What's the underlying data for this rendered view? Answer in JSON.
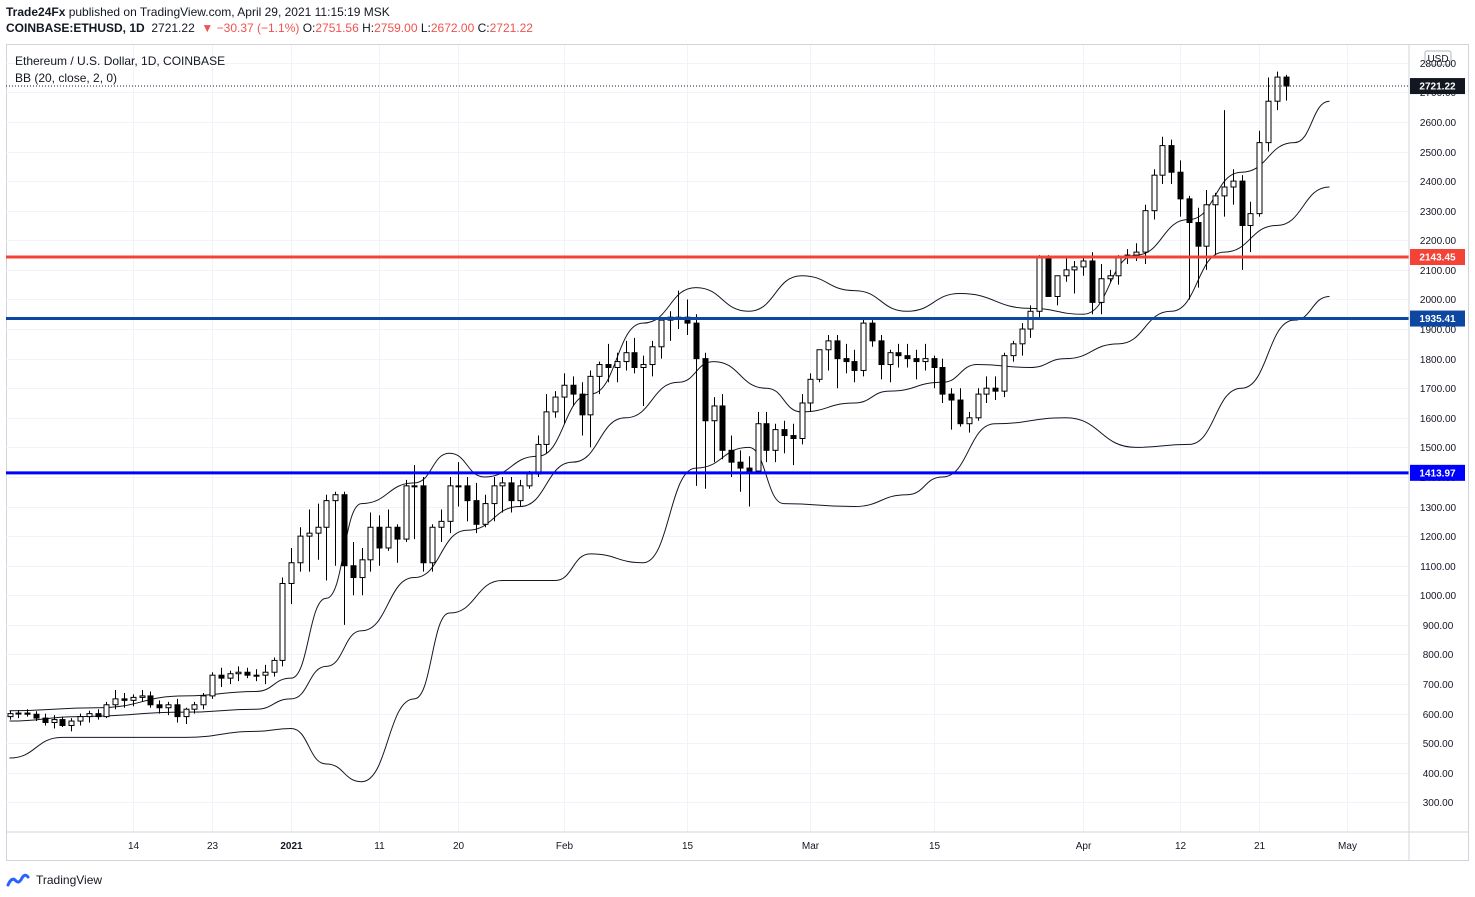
{
  "header": {
    "author": "Trade24Fx",
    "published": " published on TradingView.com, April 29, 2021 11:15:19 MSK",
    "symbol": "COINBASE:ETHUSD, 1D",
    "last": "2721.22",
    "change": "▼ −30.37 (−1.1%)",
    "o_label": "O:",
    "o_value": "2751.56",
    "h_label": "H:",
    "h_value": "2759.00",
    "l_label": "L:",
    "l_value": "2672.00",
    "c_label": "C:",
    "c_value": "2721.22"
  },
  "legend": {
    "pair": "Ethereum / U.S. Dollar, 1D, COINBASE",
    "indicator": "BB (20, close, 2, 0)"
  },
  "footer": {
    "brand": "TradingView",
    "logo_icon": "tradingview-logo-icon"
  },
  "colors": {
    "red_line": "#f44336",
    "blue_line_upper": "#0d47a1",
    "blue_line_lower": "#0000ff",
    "last_price_tag": "#131722",
    "grid": "#f0f3fa"
  },
  "chart_data": {
    "type": "candlestick",
    "currency": "USD",
    "y_ticks": [
      300,
      400,
      500,
      600,
      700,
      800,
      900,
      1000,
      1100,
      1200,
      1300,
      1400,
      1500,
      1600,
      1700,
      1800,
      1900,
      2000,
      2100,
      2200,
      2300,
      2400,
      2500,
      2600,
      2700,
      2800
    ],
    "ylim": [
      200,
      2860
    ],
    "x_ticks": [
      {
        "label": "14",
        "i": 14
      },
      {
        "label": "23",
        "i": 23
      },
      {
        "label": "2021",
        "i": 32
      },
      {
        "label": "11",
        "i": 42
      },
      {
        "label": "20",
        "i": 51
      },
      {
        "label": "Feb",
        "i": 63
      },
      {
        "label": "15",
        "i": 77
      },
      {
        "label": "Mar",
        "i": 91
      },
      {
        "label": "15",
        "i": 105
      },
      {
        "label": "Apr",
        "i": 122
      },
      {
        "label": "12",
        "i": 133
      },
      {
        "label": "21",
        "i": 142
      },
      {
        "label": "May",
        "i": 152
      }
    ],
    "horizontal_levels": [
      {
        "value": 2143.45,
        "label": "2143.45",
        "color": "#f44336"
      },
      {
        "value": 1935.41,
        "label": "1935.41",
        "color": "#0d47a1"
      },
      {
        "value": 1413.97,
        "label": "1413.97",
        "color": "#0000ff"
      }
    ],
    "last_price": {
      "value": 2721.22,
      "label": "2721.22"
    },
    "ohlc": [
      [
        590,
        610,
        580,
        600
      ],
      [
        600,
        612,
        585,
        602
      ],
      [
        602,
        615,
        590,
        598
      ],
      [
        598,
        608,
        575,
        585
      ],
      [
        585,
        600,
        560,
        570
      ],
      [
        570,
        595,
        550,
        580
      ],
      [
        580,
        590,
        555,
        560
      ],
      [
        560,
        585,
        540,
        575
      ],
      [
        575,
        600,
        560,
        590
      ],
      [
        590,
        610,
        570,
        600
      ],
      [
        600,
        615,
        580,
        590
      ],
      [
        590,
        640,
        585,
        630
      ],
      [
        630,
        680,
        615,
        650
      ],
      [
        650,
        670,
        620,
        645
      ],
      [
        645,
        665,
        625,
        655
      ],
      [
        655,
        680,
        640,
        660
      ],
      [
        660,
        675,
        620,
        630
      ],
      [
        630,
        645,
        600,
        620
      ],
      [
        620,
        640,
        595,
        630
      ],
      [
        630,
        650,
        570,
        590
      ],
      [
        590,
        620,
        565,
        615
      ],
      [
        615,
        640,
        600,
        630
      ],
      [
        630,
        670,
        615,
        660
      ],
      [
        660,
        740,
        650,
        730
      ],
      [
        730,
        755,
        690,
        720
      ],
      [
        720,
        745,
        700,
        735
      ],
      [
        735,
        760,
        710,
        740
      ],
      [
        740,
        755,
        720,
        730
      ],
      [
        730,
        750,
        710,
        730
      ],
      [
        730,
        765,
        700,
        740
      ],
      [
        740,
        790,
        725,
        780
      ],
      [
        780,
        1060,
        760,
        1040
      ],
      [
        1040,
        1160,
        970,
        1110
      ],
      [
        1110,
        1230,
        1080,
        1200
      ],
      [
        1200,
        1290,
        1080,
        1210
      ],
      [
        1210,
        1310,
        1120,
        1230
      ],
      [
        1230,
        1340,
        1050,
        1320
      ],
      [
        1320,
        1350,
        1100,
        1340
      ],
      [
        1340,
        1350,
        900,
        1100
      ],
      [
        1100,
        1180,
        1000,
        1060
      ],
      [
        1060,
        1160,
        1000,
        1120
      ],
      [
        1120,
        1280,
        1080,
        1230
      ],
      [
        1230,
        1270,
        1100,
        1160
      ],
      [
        1160,
        1290,
        1150,
        1230
      ],
      [
        1230,
        1240,
        1110,
        1190
      ],
      [
        1190,
        1390,
        1180,
        1370
      ],
      [
        1370,
        1440,
        1190,
        1370
      ],
      [
        1370,
        1400,
        1080,
        1110
      ],
      [
        1110,
        1240,
        1080,
        1230
      ],
      [
        1230,
        1290,
        1180,
        1250
      ],
      [
        1250,
        1400,
        1210,
        1370
      ],
      [
        1370,
        1450,
        1300,
        1370
      ],
      [
        1370,
        1400,
        1250,
        1320
      ],
      [
        1320,
        1380,
        1210,
        1240
      ],
      [
        1240,
        1340,
        1230,
        1310
      ],
      [
        1310,
        1400,
        1250,
        1370
      ],
      [
        1370,
        1400,
        1280,
        1380
      ],
      [
        1380,
        1400,
        1280,
        1320
      ],
      [
        1320,
        1390,
        1300,
        1370
      ],
      [
        1370,
        1420,
        1360,
        1410
      ],
      [
        1410,
        1540,
        1400,
        1510
      ],
      [
        1510,
        1680,
        1480,
        1620
      ],
      [
        1620,
        1690,
        1600,
        1670
      ],
      [
        1670,
        1750,
        1580,
        1710
      ],
      [
        1710,
        1740,
        1640,
        1680
      ],
      [
        1680,
        1720,
        1540,
        1610
      ],
      [
        1610,
        1760,
        1500,
        1740
      ],
      [
        1740,
        1790,
        1680,
        1780
      ],
      [
        1780,
        1850,
        1720,
        1770
      ],
      [
        1770,
        1820,
        1720,
        1790
      ],
      [
        1790,
        1860,
        1760,
        1820
      ],
      [
        1820,
        1870,
        1750,
        1770
      ],
      [
        1770,
        1810,
        1640,
        1780
      ],
      [
        1780,
        1860,
        1740,
        1840
      ],
      [
        1840,
        1930,
        1800,
        1930
      ],
      [
        1930,
        1960,
        1860,
        1940
      ],
      [
        1940,
        2030,
        1900,
        1940
      ],
      [
        1940,
        2000,
        1880,
        1920
      ],
      [
        1920,
        1950,
        1370,
        1800
      ],
      [
        1800,
        1820,
        1360,
        1590
      ],
      [
        1590,
        1670,
        1450,
        1640
      ],
      [
        1640,
        1680,
        1460,
        1490
      ],
      [
        1490,
        1540,
        1400,
        1450
      ],
      [
        1450,
        1490,
        1350,
        1430
      ],
      [
        1430,
        1470,
        1300,
        1420
      ],
      [
        1420,
        1620,
        1410,
        1580
      ],
      [
        1580,
        1620,
        1450,
        1490
      ],
      [
        1490,
        1580,
        1450,
        1560
      ],
      [
        1560,
        1590,
        1480,
        1540
      ],
      [
        1540,
        1580,
        1440,
        1530
      ],
      [
        1530,
        1680,
        1510,
        1650
      ],
      [
        1650,
        1750,
        1620,
        1730
      ],
      [
        1730,
        1830,
        1720,
        1830
      ],
      [
        1830,
        1880,
        1760,
        1860
      ],
      [
        1860,
        1880,
        1700,
        1800
      ],
      [
        1800,
        1850,
        1750,
        1790
      ],
      [
        1790,
        1830,
        1720,
        1760
      ],
      [
        1760,
        1940,
        1740,
        1920
      ],
      [
        1920,
        1930,
        1840,
        1860
      ],
      [
        1860,
        1880,
        1730,
        1780
      ],
      [
        1780,
        1830,
        1720,
        1820
      ],
      [
        1820,
        1850,
        1770,
        1810
      ],
      [
        1810,
        1850,
        1770,
        1800
      ],
      [
        1800,
        1830,
        1730,
        1790
      ],
      [
        1790,
        1850,
        1760,
        1800
      ],
      [
        1800,
        1810,
        1700,
        1770
      ],
      [
        1770,
        1800,
        1650,
        1680
      ],
      [
        1680,
        1700,
        1560,
        1660
      ],
      [
        1660,
        1700,
        1570,
        1580
      ],
      [
        1580,
        1620,
        1550,
        1600
      ],
      [
        1600,
        1700,
        1590,
        1680
      ],
      [
        1680,
        1740,
        1650,
        1700
      ],
      [
        1700,
        1740,
        1660,
        1690
      ],
      [
        1690,
        1820,
        1670,
        1810
      ],
      [
        1810,
        1860,
        1790,
        1850
      ],
      [
        1850,
        1920,
        1810,
        1900
      ],
      [
        1900,
        1980,
        1870,
        1960
      ],
      [
        1960,
        2150,
        1940,
        2140
      ],
      [
        2140,
        2150,
        2020,
        2010
      ],
      [
        2010,
        2080,
        1980,
        2080
      ],
      [
        2080,
        2140,
        2060,
        2100
      ],
      [
        2100,
        2130,
        2020,
        2110
      ],
      [
        2110,
        2140,
        2080,
        2130
      ],
      [
        2130,
        2160,
        1950,
        1990
      ],
      [
        1990,
        2120,
        1950,
        2070
      ],
      [
        2070,
        2100,
        2060,
        2080
      ],
      [
        2080,
        2150,
        2050,
        2140
      ],
      [
        2140,
        2170,
        2120,
        2150
      ],
      [
        2150,
        2190,
        2130,
        2160
      ],
      [
        2160,
        2320,
        2120,
        2300
      ],
      [
        2300,
        2440,
        2270,
        2420
      ],
      [
        2420,
        2550,
        2390,
        2520
      ],
      [
        2520,
        2540,
        2390,
        2430
      ],
      [
        2430,
        2470,
        2280,
        2340
      ],
      [
        2340,
        2350,
        2000,
        2260
      ],
      [
        2260,
        2310,
        2040,
        2180
      ],
      [
        2180,
        2370,
        2100,
        2320
      ],
      [
        2320,
        2360,
        2150,
        2350
      ],
      [
        2350,
        2640,
        2280,
        2380
      ],
      [
        2380,
        2440,
        2320,
        2400
      ],
      [
        2400,
        2420,
        2100,
        2250
      ],
      [
        2250,
        2330,
        2160,
        2290
      ],
      [
        2290,
        2570,
        2280,
        2530
      ],
      [
        2530,
        2750,
        2500,
        2670
      ],
      [
        2670,
        2770,
        2640,
        2751.56
      ],
      [
        2751.56,
        2759,
        2672,
        2721.22
      ]
    ],
    "bollinger_bands": {
      "basis": [
        {
          "i": 0,
          "v": 575
        },
        {
          "i": 8,
          "v": 590
        },
        {
          "i": 20,
          "v": 605
        },
        {
          "i": 28,
          "v": 615
        },
        {
          "i": 32,
          "v": 650
        },
        {
          "i": 36,
          "v": 760
        },
        {
          "i": 40,
          "v": 880
        },
        {
          "i": 46,
          "v": 1060
        },
        {
          "i": 52,
          "v": 1220
        },
        {
          "i": 58,
          "v": 1300
        },
        {
          "i": 64,
          "v": 1450
        },
        {
          "i": 70,
          "v": 1600
        },
        {
          "i": 76,
          "v": 1720
        },
        {
          "i": 80,
          "v": 1790
        },
        {
          "i": 86,
          "v": 1700
        },
        {
          "i": 90,
          "v": 1620
        },
        {
          "i": 96,
          "v": 1650
        },
        {
          "i": 100,
          "v": 1690
        },
        {
          "i": 106,
          "v": 1720
        },
        {
          "i": 110,
          "v": 1780
        },
        {
          "i": 116,
          "v": 1770
        },
        {
          "i": 120,
          "v": 1800
        },
        {
          "i": 126,
          "v": 1850
        },
        {
          "i": 132,
          "v": 1960
        },
        {
          "i": 138,
          "v": 2160
        },
        {
          "i": 144,
          "v": 2250
        },
        {
          "i": 150,
          "v": 2380
        }
      ],
      "upper": [
        {
          "i": 0,
          "v": 610
        },
        {
          "i": 10,
          "v": 620
        },
        {
          "i": 20,
          "v": 660
        },
        {
          "i": 28,
          "v": 675
        },
        {
          "i": 32,
          "v": 720
        },
        {
          "i": 36,
          "v": 990
        },
        {
          "i": 40,
          "v": 1310
        },
        {
          "i": 46,
          "v": 1380
        },
        {
          "i": 50,
          "v": 1480
        },
        {
          "i": 54,
          "v": 1400
        },
        {
          "i": 60,
          "v": 1470
        },
        {
          "i": 66,
          "v": 1680
        },
        {
          "i": 72,
          "v": 1920
        },
        {
          "i": 78,
          "v": 2040
        },
        {
          "i": 84,
          "v": 1960
        },
        {
          "i": 90,
          "v": 2080
        },
        {
          "i": 96,
          "v": 2030
        },
        {
          "i": 102,
          "v": 1960
        },
        {
          "i": 108,
          "v": 2020
        },
        {
          "i": 116,
          "v": 1970
        },
        {
          "i": 122,
          "v": 1950
        },
        {
          "i": 128,
          "v": 2150
        },
        {
          "i": 134,
          "v": 2270
        },
        {
          "i": 140,
          "v": 2430
        },
        {
          "i": 146,
          "v": 2530
        },
        {
          "i": 150,
          "v": 2670
        }
      ],
      "lower": [
        {
          "i": 0,
          "v": 450
        },
        {
          "i": 6,
          "v": 520
        },
        {
          "i": 20,
          "v": 520
        },
        {
          "i": 28,
          "v": 540
        },
        {
          "i": 32,
          "v": 550
        },
        {
          "i": 36,
          "v": 430
        },
        {
          "i": 40,
          "v": 370
        },
        {
          "i": 46,
          "v": 650
        },
        {
          "i": 50,
          "v": 940
        },
        {
          "i": 56,
          "v": 1050
        },
        {
          "i": 62,
          "v": 1050
        },
        {
          "i": 66,
          "v": 1140
        },
        {
          "i": 72,
          "v": 1110
        },
        {
          "i": 78,
          "v": 1430
        },
        {
          "i": 84,
          "v": 1500
        },
        {
          "i": 88,
          "v": 1310
        },
        {
          "i": 96,
          "v": 1300
        },
        {
          "i": 102,
          "v": 1340
        },
        {
          "i": 106,
          "v": 1400
        },
        {
          "i": 112,
          "v": 1580
        },
        {
          "i": 120,
          "v": 1600
        },
        {
          "i": 128,
          "v": 1500
        },
        {
          "i": 134,
          "v": 1510
        },
        {
          "i": 140,
          "v": 1700
        },
        {
          "i": 146,
          "v": 1930
        },
        {
          "i": 150,
          "v": 2010
        }
      ]
    }
  }
}
